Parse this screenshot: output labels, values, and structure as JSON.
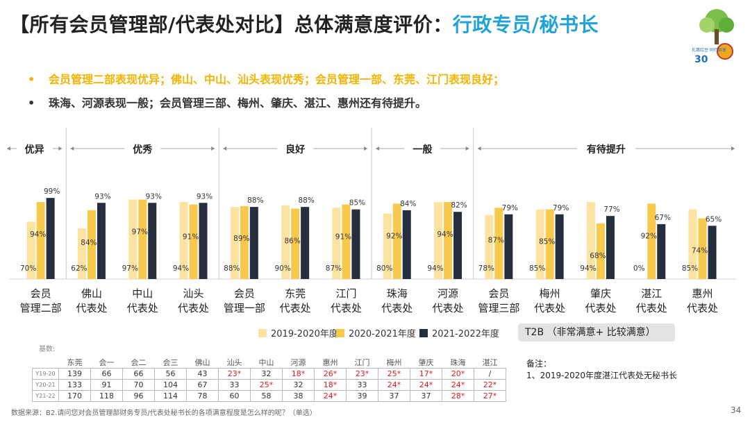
{
  "title": {
    "main": "【所有会员管理部/代表处对比】总体满意度评价：",
    "highlight": "行政专员/秘书长"
  },
  "logo": {
    "text": "礼惠红豆·同行共享"
  },
  "bullets": [
    {
      "dot": "•",
      "text": "会员管理二部表现优异；佛山、中山、汕头表现优秀；会员管理一部、东莞、江门表现良好；"
    },
    {
      "dot": "•",
      "text": "珠海、河源表现一般；会员管理三部、梅州、肇庆、湛江、惠州还有待提升。"
    }
  ],
  "colors": {
    "s1": "#fde3a1",
    "s2": "#f7c94c",
    "s3": "#262d3d",
    "divider": "#c9c9c9",
    "grid": "#d0d0d0"
  },
  "chart_data": {
    "type": "bar",
    "categories": [
      [
        "会员",
        "管理二部"
      ],
      [
        "佛山",
        "代表处"
      ],
      [
        "中山",
        "代表处"
      ],
      [
        "汕头",
        "代表处"
      ],
      [
        "会员",
        "管理一部"
      ],
      [
        "东莞",
        "代表处"
      ],
      [
        "江门",
        "代表处"
      ],
      [
        "珠海",
        "代表处"
      ],
      [
        "河源",
        "代表处"
      ],
      [
        "会员",
        "管理三部"
      ],
      [
        "梅州",
        "代表处"
      ],
      [
        "肇庆",
        "代表处"
      ],
      [
        "湛江",
        "代表处"
      ],
      [
        "惠州",
        "代表处"
      ]
    ],
    "series": [
      {
        "name": "2019-2020年度",
        "values": [
          70,
          62,
          97,
          94,
          88,
          90,
          87,
          80,
          94,
          78,
          85,
          94,
          0,
          85
        ]
      },
      {
        "name": "2020-2021年度",
        "values": [
          94,
          84,
          97,
          91,
          89,
          86,
          91,
          92,
          94,
          87,
          85,
          68,
          92,
          74
        ]
      },
      {
        "name": "2021-2022年度",
        "values": [
          99,
          93,
          93,
          93,
          88,
          88,
          85,
          84,
          82,
          79,
          79,
          77,
          67,
          65
        ]
      }
    ],
    "groups": [
      {
        "label": "优异",
        "from": 0,
        "to": 0
      },
      {
        "label": "优秀",
        "from": 1,
        "to": 3
      },
      {
        "label": "良好",
        "from": 4,
        "to": 6
      },
      {
        "label": "一般",
        "from": 7,
        "to": 8
      },
      {
        "label": "有待提升",
        "from": 9,
        "to": 13
      }
    ],
    "unit": "%",
    "ylim": [
      0,
      100
    ],
    "legend_position": "bottom"
  },
  "t2b_label": "T2B （非常满意+ 比较满意）",
  "base": {
    "label": "基数:",
    "headers": [
      "东莞",
      "会一",
      "会二",
      "会三",
      "佛山",
      "汕头",
      "中山",
      "河源",
      "惠州",
      "江门",
      "梅州",
      "肇庆",
      "珠海",
      "湛江"
    ],
    "rows": [
      {
        "label": "Y19-20",
        "cells": [
          "139",
          "66",
          "66",
          "56",
          "43",
          "23*",
          "32",
          "18*",
          "26*",
          "23*",
          "25*",
          "17*",
          "20*",
          "/"
        ]
      },
      {
        "label": "Y20-21",
        "cells": [
          "133",
          "91",
          "70",
          "104",
          "67",
          "33",
          "25*",
          "32",
          "18*",
          "33",
          "24*",
          "24*",
          "24*",
          "22*"
        ]
      },
      {
        "label": "Y21-22",
        "cells": [
          "170",
          "118",
          "96",
          "114",
          "78",
          "60",
          "58",
          "38",
          "24*",
          "39",
          "37",
          "37",
          "28*",
          "27*"
        ]
      }
    ]
  },
  "note": {
    "title": "备注：",
    "text": "1、2019-2020年度湛江代表处无秘书长"
  },
  "source": "数据来源：B2.请问您对会员管理部财务专员/代表处秘书长的各项满意程度是怎么样的呢？（单选）",
  "page_number": "34"
}
